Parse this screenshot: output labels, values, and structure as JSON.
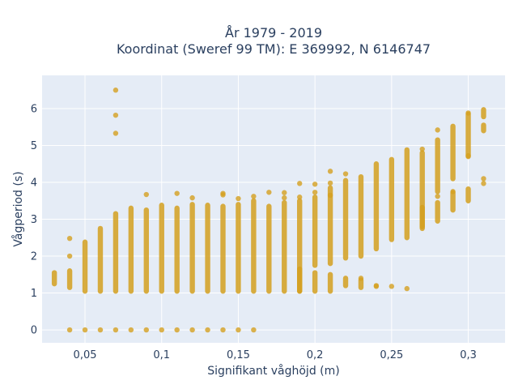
{
  "chart_data": {
    "type": "scatter",
    "title": "År 1979 - 2019",
    "subtitle": "Koordinat (Sweref 99 TM): E 369992, N 6146747",
    "xlabel": "Signifikant våghöjd (m)",
    "ylabel": "Vågperiod (s)",
    "xlim": [
      0.022,
      0.324
    ],
    "ylim": [
      -0.35,
      6.9
    ],
    "x_ticks": [
      0.05,
      0.1,
      0.15,
      0.2,
      0.25,
      0.3
    ],
    "x_tick_labels": [
      "0,05",
      "0,1",
      "0,15",
      "0,2",
      "0,25",
      "0,3"
    ],
    "y_ticks": [
      0,
      1,
      2,
      3,
      4,
      5,
      6
    ],
    "y_tick_labels": [
      "0",
      "1",
      "2",
      "3",
      "4",
      "5",
      "6"
    ],
    "grid": true,
    "legend": "none",
    "marker_color": "#d4a020",
    "background_color": "#e5ecf6",
    "columns": [
      {
        "x": 0.03,
        "ranges": [
          [
            1.25,
            1.55
          ]
        ],
        "points": []
      },
      {
        "x": 0.04,
        "ranges": [
          [
            1.15,
            1.6
          ]
        ],
        "points": [
          0,
          2.0,
          2.48
        ]
      },
      {
        "x": 0.05,
        "ranges": [
          [
            1.05,
            2.38
          ]
        ],
        "points": [
          0
        ]
      },
      {
        "x": 0.06,
        "ranges": [
          [
            1.05,
            2.75
          ]
        ],
        "points": [
          0
        ]
      },
      {
        "x": 0.07,
        "ranges": [
          [
            1.05,
            3.15
          ]
        ],
        "points": [
          0,
          5.33,
          5.82,
          6.5
        ]
      },
      {
        "x": 0.08,
        "ranges": [
          [
            1.05,
            3.3
          ]
        ],
        "points": [
          0
        ]
      },
      {
        "x": 0.09,
        "ranges": [
          [
            1.05,
            3.25
          ]
        ],
        "points": [
          0,
          3.67
        ]
      },
      {
        "x": 0.1,
        "ranges": [
          [
            1.05,
            3.38
          ]
        ],
        "points": [
          0
        ]
      },
      {
        "x": 0.11,
        "ranges": [
          [
            1.05,
            3.3
          ]
        ],
        "points": [
          0,
          3.7
        ]
      },
      {
        "x": 0.12,
        "ranges": [
          [
            1.05,
            3.4
          ]
        ],
        "points": [
          0,
          3.58
        ]
      },
      {
        "x": 0.13,
        "ranges": [
          [
            1.05,
            3.38
          ]
        ],
        "points": [
          0
        ]
      },
      {
        "x": 0.14,
        "ranges": [
          [
            1.05,
            3.35
          ]
        ],
        "points": [
          0,
          3.66,
          3.7
        ]
      },
      {
        "x": 0.15,
        "ranges": [
          [
            1.05,
            3.4
          ]
        ],
        "points": [
          0,
          3.56
        ]
      },
      {
        "x": 0.16,
        "ranges": [
          [
            1.05,
            3.5
          ]
        ],
        "points": [
          0,
          3.62
        ]
      },
      {
        "x": 0.17,
        "ranges": [
          [
            1.05,
            3.35
          ]
        ],
        "points": [
          3.73
        ]
      },
      {
        "x": 0.18,
        "ranges": [
          [
            1.05,
            3.45
          ]
        ],
        "points": [
          3.58,
          3.72
        ]
      },
      {
        "x": 0.19,
        "ranges": [
          [
            1.05,
            1.65
          ],
          [
            1.05,
            3.5
          ]
        ],
        "points": [
          3.6,
          3.97
        ]
      },
      {
        "x": 0.2,
        "ranges": [
          [
            1.05,
            1.55
          ],
          [
            1.75,
            3.6
          ]
        ],
        "points": [
          3.73,
          3.95
        ]
      },
      {
        "x": 0.21,
        "ranges": [
          [
            1.05,
            1.5
          ],
          [
            1.8,
            3.85
          ]
        ],
        "points": [
          3.65,
          3.98,
          4.3
        ]
      },
      {
        "x": 0.22,
        "ranges": [
          [
            1.2,
            1.4
          ],
          [
            1.95,
            4.05
          ]
        ],
        "points": [
          4.23
        ]
      },
      {
        "x": 0.23,
        "ranges": [
          [
            1.15,
            1.35
          ],
          [
            2.0,
            4.15
          ]
        ],
        "points": [
          1.4
        ]
      },
      {
        "x": 0.24,
        "ranges": [
          [
            2.2,
            4.5
          ]
        ],
        "points": [
          1.18,
          1.2
        ]
      },
      {
        "x": 0.25,
        "ranges": [
          [
            2.45,
            4.62
          ]
        ],
        "points": [
          1.18
        ]
      },
      {
        "x": 0.26,
        "ranges": [
          [
            2.5,
            4.88
          ]
        ],
        "points": [
          1.12
        ]
      },
      {
        "x": 0.27,
        "ranges": [
          [
            2.8,
            4.8
          ],
          [
            2.75,
            3.32
          ]
        ],
        "points": [
          4.9
        ]
      },
      {
        "x": 0.28,
        "ranges": [
          [
            2.95,
            3.45
          ],
          [
            3.75,
            5.15
          ]
        ],
        "points": [
          3.62,
          5.42
        ]
      },
      {
        "x": 0.29,
        "ranges": [
          [
            3.25,
            3.72
          ],
          [
            4.1,
            5.52
          ]
        ],
        "points": [
          3.75
        ]
      },
      {
        "x": 0.3,
        "ranges": [
          [
            3.5,
            3.82
          ],
          [
            4.7,
            5.85
          ]
        ],
        "points": [
          4.72,
          5.88
        ]
      },
      {
        "x": 0.31,
        "ranges": [
          [
            5.4,
            5.55
          ],
          [
            5.78,
            5.97
          ]
        ],
        "points": [
          3.97,
          4.1
        ]
      }
    ]
  }
}
